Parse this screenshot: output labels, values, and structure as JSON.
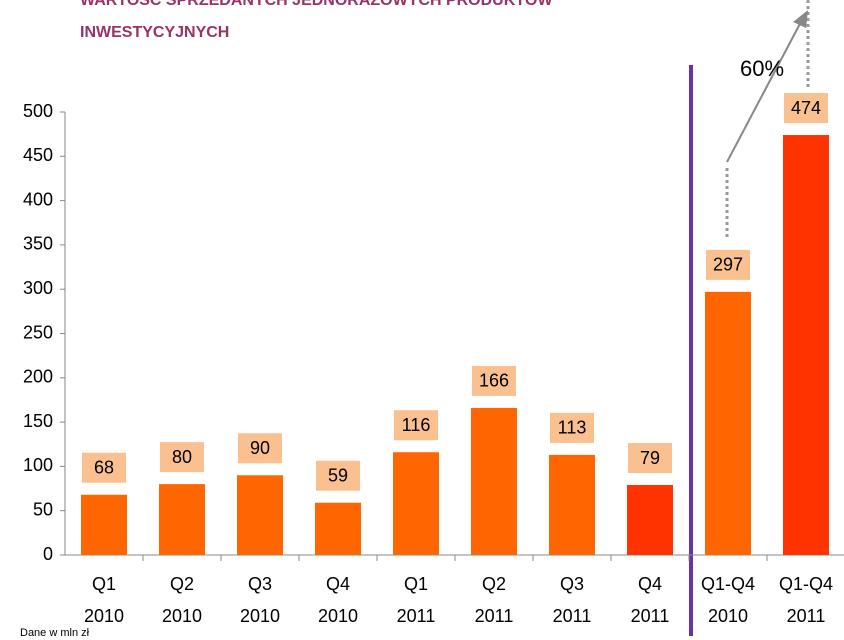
{
  "chart_data": {
    "type": "bar",
    "title_lines": [
      "WARTOŚĆ SPRZEDANYCH JEDNORAZOWYCH PRODUKTÓW",
      "INWESTYCYJNYCH"
    ],
    "categories": [
      [
        "Q1",
        "2010"
      ],
      [
        "Q2",
        "2010"
      ],
      [
        "Q3",
        "2010"
      ],
      [
        "Q4",
        "2010"
      ],
      [
        "Q1",
        "2011"
      ],
      [
        "Q2",
        "2011"
      ],
      [
        "Q3",
        "2011"
      ],
      [
        "Q4",
        "2011"
      ],
      [
        "Q1-Q4",
        "2010"
      ],
      [
        "Q1-Q4",
        "2011"
      ]
    ],
    "values": [
      68,
      80,
      90,
      59,
      116,
      166,
      113,
      79,
      297,
      474
    ],
    "colors": [
      "#ff6600",
      "#ff6600",
      "#ff6600",
      "#ff6600",
      "#ff6600",
      "#ff6600",
      "#ff6600",
      "#ff3300",
      "#ff6600",
      "#ff3300"
    ],
    "label_box_color": "#fac090",
    "ylim": [
      0,
      500
    ],
    "yticks": [
      0,
      50,
      100,
      150,
      200,
      250,
      300,
      350,
      400,
      450,
      500
    ],
    "annotation": "60%",
    "note": "Dane w mln zł"
  }
}
